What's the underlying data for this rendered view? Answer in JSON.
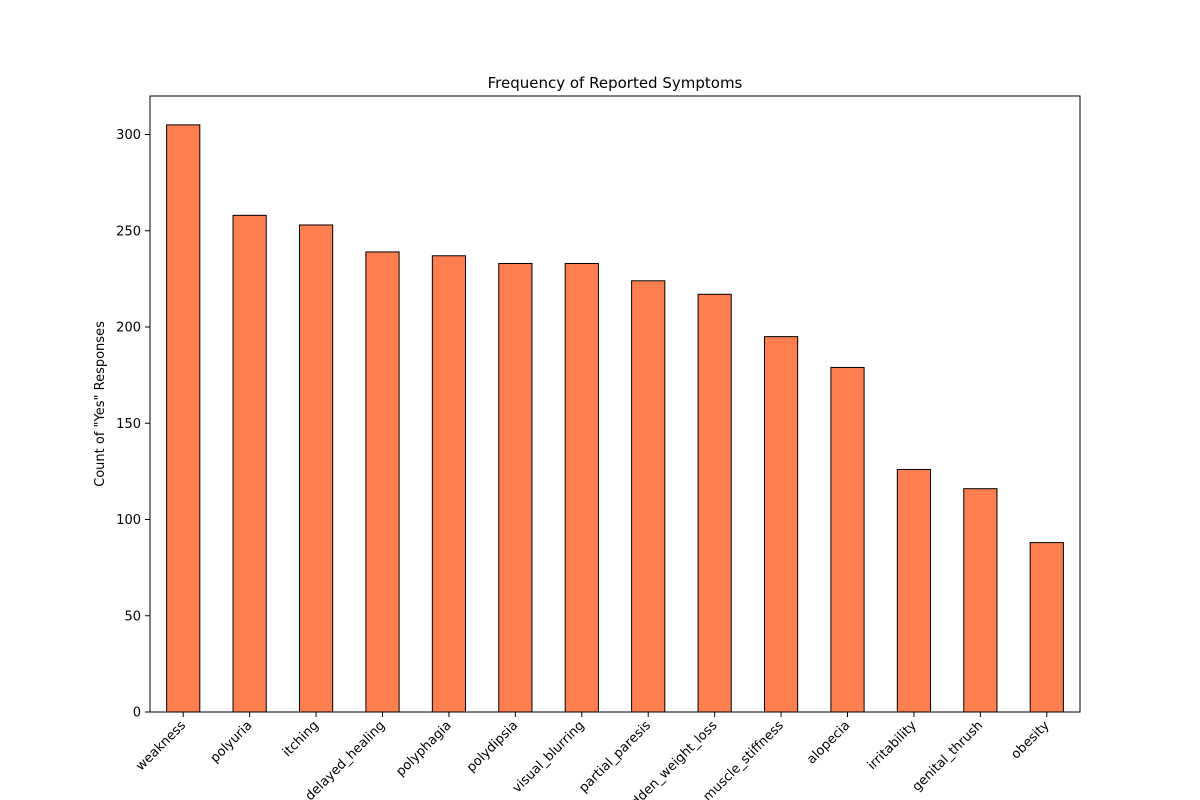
{
  "chart_data": {
    "type": "bar",
    "title": "Frequency of Reported Symptoms",
    "xlabel": "",
    "ylabel": "Count of \"Yes\" Responses",
    "categories": [
      "weakness",
      "polyuria",
      "itching",
      "delayed_healing",
      "polyphagia",
      "polydipsia",
      "visual_blurring",
      "partial_paresis",
      "sudden_weight_loss",
      "muscle_stiffness",
      "alopecia",
      "irritability",
      "genital_thrush",
      "obesity"
    ],
    "values": [
      305,
      258,
      253,
      239,
      237,
      233,
      233,
      224,
      217,
      195,
      179,
      126,
      116,
      88
    ],
    "ylim": [
      0,
      320
    ],
    "yticks": [
      0,
      50,
      100,
      150,
      200,
      250,
      300
    ],
    "grid": false,
    "legend": false,
    "colors": {
      "bar_fill": "#ff7f50",
      "bar_edge": "#000000"
    }
  }
}
